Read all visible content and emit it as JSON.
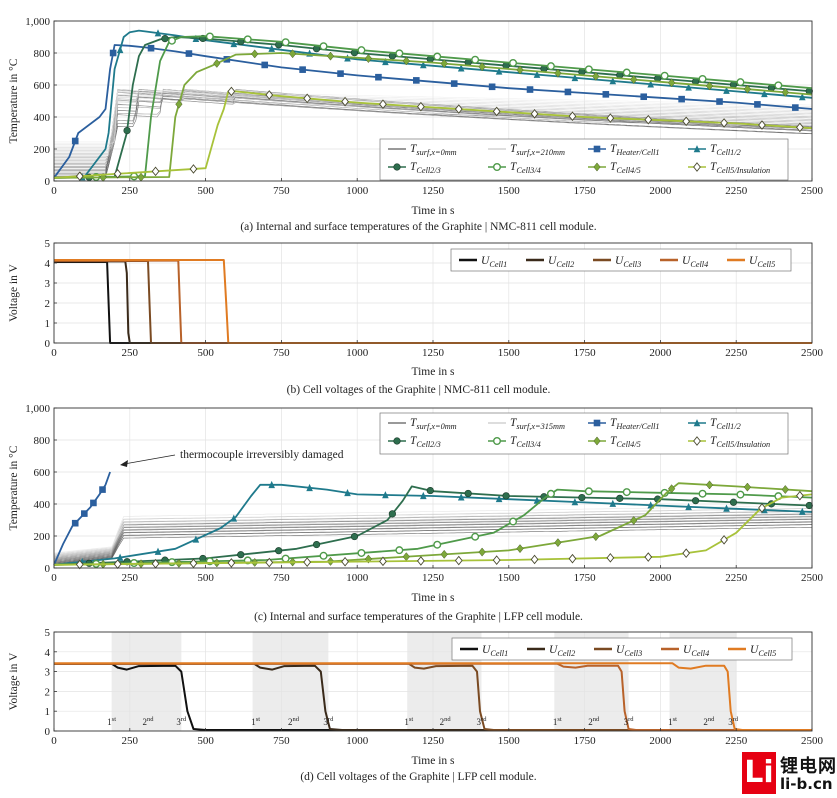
{
  "chart_data": [
    {
      "id": "a",
      "type": "line",
      "caption": "(a) Internal and surface temperatures of the Graphite | NMC-811 cell module.",
      "xlabel": "Time in s",
      "ylabel": "Temperature in °C",
      "xlim": [
        0,
        2500
      ],
      "ylim": [
        0,
        1000
      ],
      "xticks": [
        0,
        250,
        500,
        750,
        1000,
        1250,
        1500,
        1750,
        2000,
        2250,
        2500
      ],
      "yticks": [
        0,
        200,
        400,
        600,
        800,
        1000
      ],
      "ytick_labels": [
        "0",
        "200",
        "400",
        "600",
        "800",
        "1,000"
      ],
      "grid": true,
      "legend_position": "bottom-right",
      "legend": [
        {
          "main": "T",
          "sub": "surf,x=0mm",
          "style": "thin-dark"
        },
        {
          "main": "T",
          "sub": "surf,x=210mm",
          "style": "thin-light"
        },
        {
          "main": "T",
          "sub": "Heater/Cell1",
          "style": "square",
          "color": "#2b5f9e"
        },
        {
          "main": "T",
          "sub": "Cell1/2",
          "style": "triangle",
          "color": "#1f7a8c"
        },
        {
          "main": "T",
          "sub": "Cell2/3",
          "style": "circle",
          "color": "#2e6e4e"
        },
        {
          "main": "T",
          "sub": "Cell3/4",
          "style": "circle-open",
          "color": "#4f9a4a"
        },
        {
          "main": "T",
          "sub": "Cell4/5",
          "style": "diamond",
          "color": "#7da83a"
        },
        {
          "main": "T",
          "sub": "Cell5/Insulation",
          "style": "diamond-open",
          "color": "#a8c23a"
        }
      ],
      "series": [
        {
          "name": "THeater/Cell1",
          "color": "#2b5f9e",
          "marker": "square",
          "x": [
            0,
            50,
            80,
            150,
            170,
            185,
            200,
            250,
            300,
            400,
            500,
            750,
            1000,
            1250,
            1500,
            1750,
            2000,
            2250,
            2500
          ],
          "y": [
            20,
            150,
            300,
            400,
            450,
            700,
            850,
            845,
            835,
            810,
            780,
            710,
            660,
            620,
            580,
            550,
            520,
            490,
            450
          ]
        },
        {
          "name": "TCell1/2",
          "color": "#1f7a8c",
          "marker": "triangle",
          "x": [
            0,
            100,
            170,
            180,
            200,
            230,
            250,
            280,
            300,
            400,
            500,
            750,
            1000,
            1250,
            1500,
            1750,
            2000,
            2250,
            2500
          ],
          "y": [
            20,
            25,
            200,
            300,
            700,
            900,
            930,
            940,
            935,
            910,
            880,
            820,
            760,
            720,
            680,
            640,
            600,
            560,
            520
          ]
        },
        {
          "name": "TCell2/3",
          "color": "#2e6e4e",
          "marker": "circle",
          "x": [
            0,
            200,
            240,
            260,
            280,
            300,
            350,
            400,
            500,
            750,
            1000,
            1250,
            1500,
            1750,
            2000,
            2250,
            2500
          ],
          "y": [
            20,
            25,
            300,
            600,
            780,
            850,
            885,
            900,
            890,
            850,
            800,
            760,
            720,
            680,
            640,
            600,
            560
          ]
        },
        {
          "name": "TCell3/4",
          "color": "#4f9a4a",
          "marker": "circle-open",
          "x": [
            0,
            300,
            320,
            350,
            380,
            420,
            500,
            750,
            1000,
            1250,
            1500,
            1750,
            2000,
            2250,
            2500
          ],
          "y": [
            20,
            30,
            400,
            750,
            870,
            900,
            905,
            870,
            820,
            780,
            740,
            700,
            660,
            620,
            580
          ]
        },
        {
          "name": "TCell4/5",
          "color": "#7da83a",
          "marker": "diamond",
          "x": [
            0,
            380,
            400,
            430,
            470,
            520,
            600,
            750,
            1000,
            1250,
            1500,
            1750,
            2000,
            2250,
            2500
          ],
          "y": [
            20,
            25,
            400,
            600,
            680,
            720,
            790,
            800,
            770,
            740,
            700,
            660,
            620,
            580,
            540
          ]
        },
        {
          "name": "TCell5/Insulation",
          "color": "#a8c23a",
          "marker": "diamond-open",
          "x": [
            0,
            500,
            540,
            560,
            575,
            600,
            750,
            1000,
            1250,
            1500,
            1750,
            2000,
            2250,
            2500
          ],
          "y": [
            20,
            80,
            350,
            450,
            560,
            560,
            530,
            490,
            460,
            430,
            400,
            380,
            360,
            330
          ]
        }
      ]
    },
    {
      "id": "b",
      "type": "line",
      "caption": "(b) Cell voltages of the Graphite | NMC-811 cell module.",
      "xlabel": "Time in s",
      "ylabel": "Voltage in V",
      "xlim": [
        0,
        2500
      ],
      "ylim": [
        0,
        5
      ],
      "xticks": [
        0,
        250,
        500,
        750,
        1000,
        1250,
        1500,
        1750,
        2000,
        2250,
        2500
      ],
      "yticks": [
        0,
        1,
        2,
        3,
        4,
        5
      ],
      "grid": true,
      "legend_position": "top-right",
      "series": [
        {
          "name": "UCell1",
          "sub": "Cell1",
          "color": "#111111",
          "x": [
            0,
            175,
            180,
            185,
            2500
          ],
          "y": [
            4.05,
            4.05,
            2.0,
            0,
            0
          ]
        },
        {
          "name": "UCell2",
          "sub": "Cell2",
          "color": "#3a2a1a",
          "x": [
            0,
            235,
            240,
            245,
            250,
            2500
          ],
          "y": [
            4.08,
            4.08,
            3.5,
            0.5,
            0,
            0
          ]
        },
        {
          "name": "UCell3",
          "sub": "Cell3",
          "color": "#7a4a22",
          "x": [
            0,
            310,
            315,
            320,
            2500
          ],
          "y": [
            4.1,
            4.1,
            2.0,
            0,
            0
          ]
        },
        {
          "name": "UCell4",
          "sub": "Cell4",
          "color": "#b8622a",
          "x": [
            0,
            410,
            415,
            420,
            2500
          ],
          "y": [
            4.12,
            4.12,
            2.0,
            0,
            0
          ]
        },
        {
          "name": "UCell5",
          "sub": "Cell5",
          "color": "#e07b22",
          "x": [
            0,
            560,
            568,
            575,
            2500
          ],
          "y": [
            4.15,
            4.15,
            2.0,
            0,
            0
          ]
        }
      ]
    },
    {
      "id": "c",
      "type": "line",
      "caption": "(c) Internal and surface temperatures of the Graphite | LFP cell module.",
      "xlabel": "Time in s",
      "ylabel": "Temperature in °C",
      "xlim": [
        0,
        2500
      ],
      "ylim": [
        0,
        1000
      ],
      "xticks": [
        0,
        250,
        500,
        750,
        1000,
        1250,
        1500,
        1750,
        2000,
        2250,
        2500
      ],
      "yticks": [
        0,
        200,
        400,
        600,
        800,
        1000
      ],
      "ytick_labels": [
        "0",
        "200",
        "400",
        "600",
        "800",
        "1,000"
      ],
      "grid": true,
      "legend_position": "top-right",
      "annotation": "thermocouple irreversibly damaged",
      "legend": [
        {
          "main": "T",
          "sub": "surf,x=0mm",
          "style": "thin-dark"
        },
        {
          "main": "T",
          "sub": "surf,x=315mm",
          "style": "thin-light"
        },
        {
          "main": "T",
          "sub": "Heater/Cell1",
          "style": "square",
          "color": "#2b5f9e"
        },
        {
          "main": "T",
          "sub": "Cell1/2",
          "style": "triangle",
          "color": "#1f7a8c"
        },
        {
          "main": "T",
          "sub": "Cell2/3",
          "style": "circle",
          "color": "#2e6e4e"
        },
        {
          "main": "T",
          "sub": "Cell3/4",
          "style": "circle-open",
          "color": "#4f9a4a"
        },
        {
          "main": "T",
          "sub": "Cell4/5",
          "style": "diamond",
          "color": "#7da83a"
        },
        {
          "main": "T",
          "sub": "Cell5/Insulation",
          "style": "diamond-open",
          "color": "#a8c23a"
        }
      ],
      "series": [
        {
          "name": "THeater/Cell1",
          "color": "#2b5f9e",
          "marker": "square",
          "x": [
            0,
            30,
            60,
            90,
            120,
            150,
            170,
            185
          ],
          "y": [
            20,
            150,
            260,
            320,
            380,
            460,
            520,
            600
          ]
        },
        {
          "name": "TCell1/2",
          "color": "#1f7a8c",
          "marker": "triangle",
          "x": [
            0,
            200,
            400,
            550,
            600,
            650,
            680,
            750,
            900,
            1000,
            1250,
            1500,
            1750,
            2000,
            2250,
            2500
          ],
          "y": [
            20,
            60,
            120,
            250,
            320,
            450,
            520,
            520,
            490,
            460,
            450,
            430,
            410,
            390,
            370,
            350
          ]
        },
        {
          "name": "TCell2/3",
          "color": "#2e6e4e",
          "marker": "circle",
          "x": [
            0,
            500,
            800,
            1000,
            1100,
            1150,
            1180,
            1250,
            1500,
            1750,
            2000,
            2250,
            2500
          ],
          "y": [
            20,
            60,
            120,
            200,
            300,
            420,
            510,
            480,
            450,
            440,
            430,
            410,
            390
          ]
        },
        {
          "name": "TCell3/4",
          "color": "#4f9a4a",
          "marker": "circle-open",
          "x": [
            0,
            700,
            1200,
            1450,
            1550,
            1620,
            1660,
            1750,
            2000,
            2250,
            2500
          ],
          "y": [
            20,
            50,
            120,
            220,
            330,
            440,
            490,
            480,
            470,
            460,
            440
          ]
        },
        {
          "name": "TCell4/5",
          "color": "#7da83a",
          "marker": "diamond",
          "x": [
            0,
            900,
            1500,
            1800,
            1950,
            2020,
            2060,
            2250,
            2500
          ],
          "y": [
            20,
            40,
            110,
            200,
            330,
            470,
            530,
            510,
            480
          ]
        },
        {
          "name": "TCell5/Insulation",
          "color": "#a8c23a",
          "marker": "diamond-open",
          "x": [
            0,
            500,
            1000,
            1500,
            2000,
            2150,
            2250,
            2330,
            2400,
            2500
          ],
          "y": [
            20,
            30,
            40,
            50,
            70,
            110,
            220,
            370,
            440,
            460
          ]
        }
      ]
    },
    {
      "id": "d",
      "type": "line",
      "caption": "(d) Cell voltages of the Graphite | LFP cell module.",
      "xlabel": "Time in s",
      "ylabel": "Voltage in V",
      "xlim": [
        0,
        2500
      ],
      "ylim": [
        0,
        5
      ],
      "xticks": [
        0,
        250,
        500,
        750,
        1000,
        1250,
        1500,
        1750,
        2000,
        2250,
        2500
      ],
      "yticks": [
        0,
        1,
        2,
        3,
        4,
        5
      ],
      "grid": true,
      "legend_position": "top-right",
      "phases": [
        {
          "labels": [
            "1",
            "2",
            "3"
          ],
          "x": [
            190,
            310,
            420
          ]
        },
        {
          "labels": [
            "1",
            "2",
            "3"
          ],
          "x": [
            665,
            790,
            905
          ]
        },
        {
          "labels": [
            "1",
            "2",
            "3"
          ],
          "x": [
            1170,
            1290,
            1410
          ]
        },
        {
          "labels": [
            "1",
            "2",
            "3"
          ],
          "x": [
            1660,
            1780,
            1895
          ]
        },
        {
          "labels": [
            "1",
            "2",
            "3"
          ],
          "x": [
            2040,
            2160,
            2240
          ]
        }
      ],
      "phase_suffixes": [
        "st",
        "nd",
        "rd"
      ],
      "shaded_bands": [
        [
          190,
          420
        ],
        [
          655,
          905
        ],
        [
          1165,
          1410
        ],
        [
          1650,
          1895
        ],
        [
          2030,
          2250
        ]
      ],
      "series": [
        {
          "name": "UCell1",
          "sub": "Cell1",
          "color": "#111111",
          "x": [
            0,
            190,
            210,
            240,
            280,
            400,
            420,
            440,
            460,
            500,
            2500
          ],
          "y": [
            3.4,
            3.4,
            3.2,
            3.1,
            3.28,
            3.3,
            3.0,
            1.0,
            0.1,
            0.05,
            0.05
          ]
        },
        {
          "name": "UCell2",
          "sub": "Cell2",
          "color": "#3a2a1a",
          "x": [
            0,
            660,
            680,
            720,
            760,
            860,
            880,
            895,
            910,
            950,
            2500
          ],
          "y": [
            3.4,
            3.4,
            3.2,
            3.1,
            3.28,
            3.3,
            3.0,
            1.0,
            0.1,
            0.05,
            0.05
          ]
        },
        {
          "name": "UCell3",
          "sub": "Cell3",
          "color": "#7a4a22",
          "x": [
            0,
            1170,
            1190,
            1220,
            1260,
            1380,
            1395,
            1405,
            1420,
            1450,
            2500
          ],
          "y": [
            3.4,
            3.4,
            3.2,
            3.15,
            3.28,
            3.3,
            3.0,
            1.0,
            0.1,
            0.05,
            0.05
          ]
        },
        {
          "name": "UCell4",
          "sub": "Cell4",
          "color": "#b8622a",
          "x": [
            0,
            1660,
            1680,
            1720,
            1760,
            1860,
            1872,
            1882,
            1895,
            1920,
            2500
          ],
          "y": [
            3.4,
            3.4,
            3.25,
            3.2,
            3.3,
            3.3,
            3.0,
            1.0,
            0.1,
            0.05,
            0.05
          ]
        },
        {
          "name": "UCell5",
          "sub": "Cell5",
          "color": "#e07b22",
          "x": [
            0,
            2040,
            2060,
            2100,
            2150,
            2210,
            2222,
            2232,
            2245,
            2270,
            2500
          ],
          "y": [
            3.42,
            3.42,
            3.2,
            3.15,
            3.3,
            3.3,
            3.0,
            1.0,
            0.1,
            0.05,
            0.05
          ]
        }
      ]
    }
  ],
  "watermark": {
    "logo_letter": "Li",
    "cn_text": "锂电网",
    "url": "li-b.cn"
  }
}
